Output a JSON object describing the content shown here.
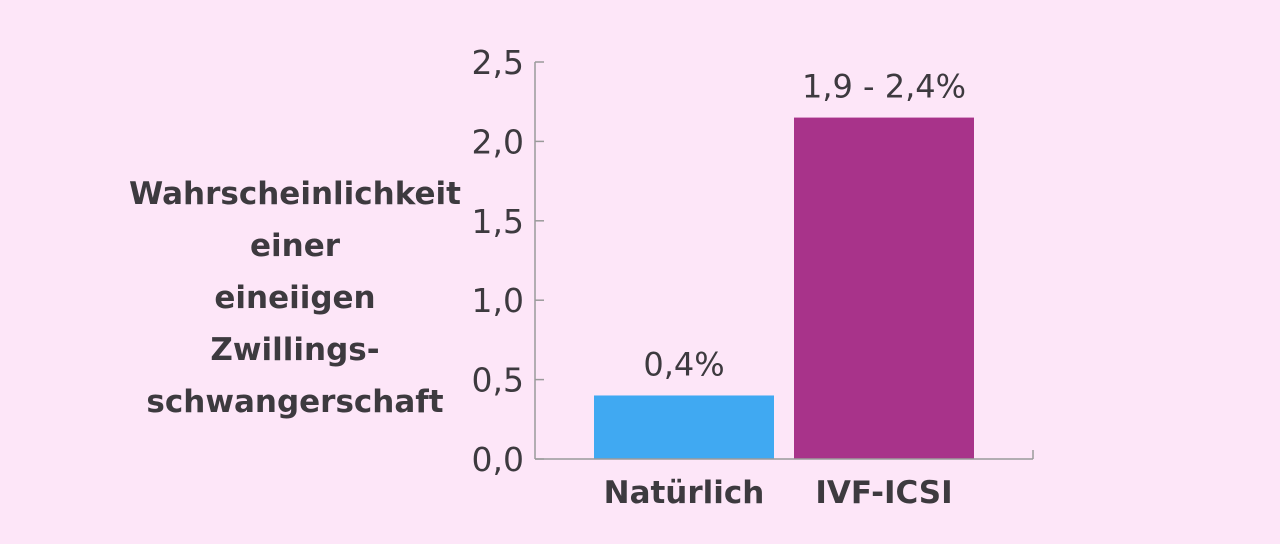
{
  "chart_data": {
    "type": "bar",
    "title": "",
    "xlabel": "",
    "ylabel_lines": [
      "Wahrscheinlichkeit",
      "einer",
      "eineiigen",
      "Zwillings-",
      "schwangerschaft"
    ],
    "categories": [
      "Natürlich",
      "IVF-ICSI"
    ],
    "values": [
      0.4,
      2.15
    ],
    "data_labels": [
      "0,4%",
      "1,9 - 2,4%"
    ],
    "bar_colors": [
      "#40a9f2",
      "#a8338a"
    ],
    "yticks": [
      0,
      0.5,
      1,
      1.5,
      2,
      2.5
    ],
    "ytick_labels": [
      "0,0",
      "0,5",
      "1,0",
      "1,5",
      "2,0",
      "2,5"
    ],
    "ylim": [
      0,
      2.5
    ],
    "grid": false,
    "legend": "none",
    "axis_color": "#9a9a9a",
    "text_color": "#3d3a3f",
    "background": "#fde6f8"
  }
}
